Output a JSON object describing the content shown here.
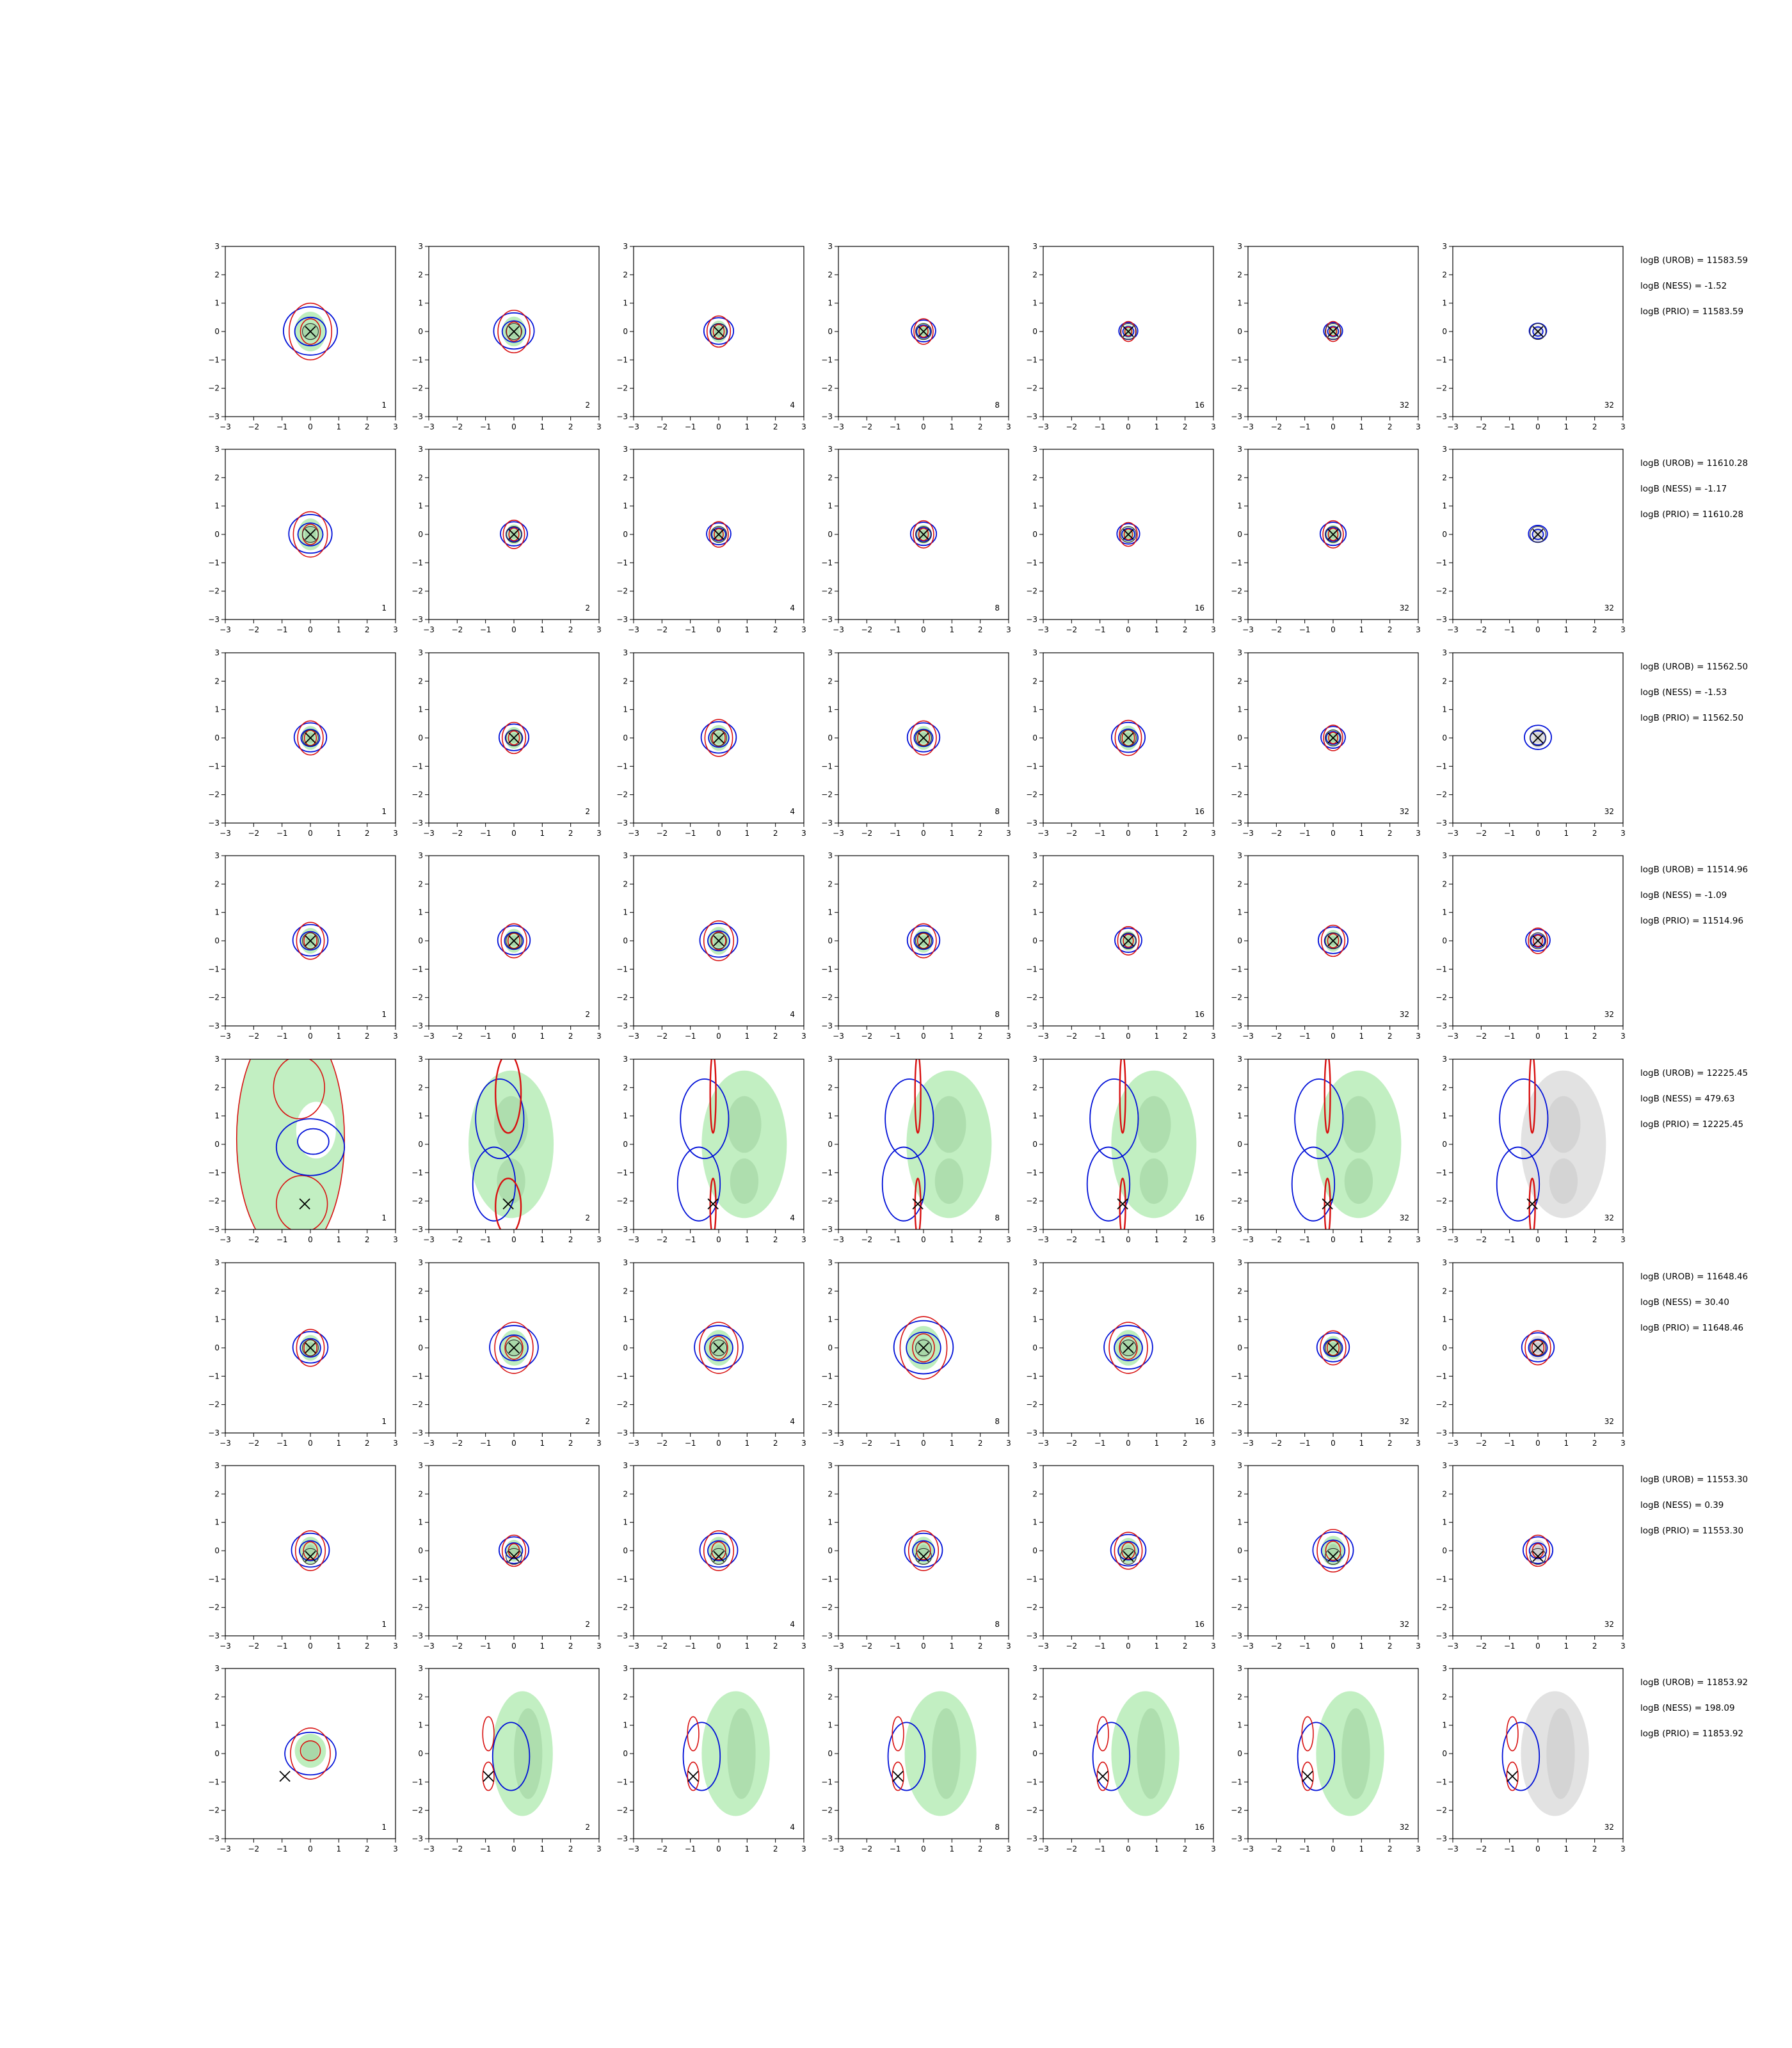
{
  "figure": {
    "x_ticks": [
      "−3",
      "−2",
      "−1",
      "0",
      "1",
      "2",
      "3"
    ],
    "y_ticks": [
      "3",
      "2",
      "1",
      "0",
      "−1",
      "−2",
      "−3"
    ],
    "colors": {
      "reference_fill": "#b7ecb7",
      "reference_inner_fill": "#9fcf9f",
      "final_fill": "#dddddd",
      "blue_contour": "#0010d8",
      "red_contour": "#d81010",
      "marker": "#000000"
    }
  },
  "chart_data": {
    "type": "contour",
    "grid": {
      "rows": 8,
      "cols": 7
    },
    "xlim": [
      -3,
      3
    ],
    "ylim": [
      -3,
      3
    ],
    "column_labels": [
      "1",
      "2",
      "4",
      "8",
      "16",
      "32",
      "32"
    ],
    "rows": [
      {
        "truth": [
          0,
          0
        ],
        "shape": "round",
        "scale": [
          1.0,
          0.75,
          0.55,
          0.45,
          0.35,
          0.35,
          0.32
        ],
        "annotations": [
          "logB (UROB) = 11583.59",
          "logB (NESS) = -1.52",
          "logB (PRIO) = 11583.59"
        ]
      },
      {
        "truth": [
          0,
          0
        ],
        "shape": "round",
        "scale": [
          0.8,
          0.5,
          0.45,
          0.48,
          0.42,
          0.48,
          0.35
        ],
        "annotations": [
          "logB (UROB) = 11610.28",
          "logB (NESS) = -1.17",
          "logB (PRIO) = 11610.28"
        ]
      },
      {
        "truth": [
          0,
          0
        ],
        "shape": "round",
        "scale": [
          0.6,
          0.55,
          0.65,
          0.6,
          0.62,
          0.45,
          0.5
        ],
        "annotations": [
          "logB (UROB) = 11562.50",
          "logB (NESS) = -1.53",
          "logB (PRIO) = 11562.50"
        ]
      },
      {
        "truth": [
          0,
          0
        ],
        "shape": "round",
        "scale": [
          0.65,
          0.6,
          0.7,
          0.6,
          0.5,
          0.55,
          0.45
        ],
        "annotations": [
          "logB (UROB) = 11514.96",
          "logB (NESS) = -1.09",
          "logB (PRIO) = 11514.96"
        ]
      },
      {
        "truth": [
          -0.2,
          -2.1
        ],
        "shape": "bimodal",
        "scale": [
          1,
          1,
          1,
          1,
          1,
          1,
          1
        ],
        "annotations": [
          "logB (UROB) = 12225.45",
          "logB (NESS) = 479.63",
          "logB (PRIO) = 12225.45"
        ]
      },
      {
        "truth": [
          0,
          0
        ],
        "shape": "round",
        "scale": [
          0.65,
          0.9,
          0.9,
          1.1,
          0.9,
          0.6,
          0.6
        ],
        "annotations": [
          "logB (UROB) = 11648.46",
          "logB (NESS) = 30.40",
          "logB (PRIO) = 11648.46"
        ]
      },
      {
        "truth": [
          0,
          -0.2
        ],
        "shape": "round",
        "scale": [
          0.7,
          0.55,
          0.7,
          0.7,
          0.65,
          0.75,
          0.55
        ],
        "annotations": [
          "logB (UROB) = 11553.30",
          "logB (NESS) = 0.39",
          "logB (PRIO) = 11553.30"
        ]
      },
      {
        "truth": [
          -0.9,
          -0.8
        ],
        "shape": "shifted",
        "scale": [
          0.7,
          1.2,
          1.4,
          1.5,
          1.4,
          1.4,
          1.4
        ],
        "annotations": [
          "logB (UROB) = 11853.92",
          "logB (NESS) = 198.09",
          "logB (PRIO) = 11853.92"
        ]
      }
    ]
  }
}
